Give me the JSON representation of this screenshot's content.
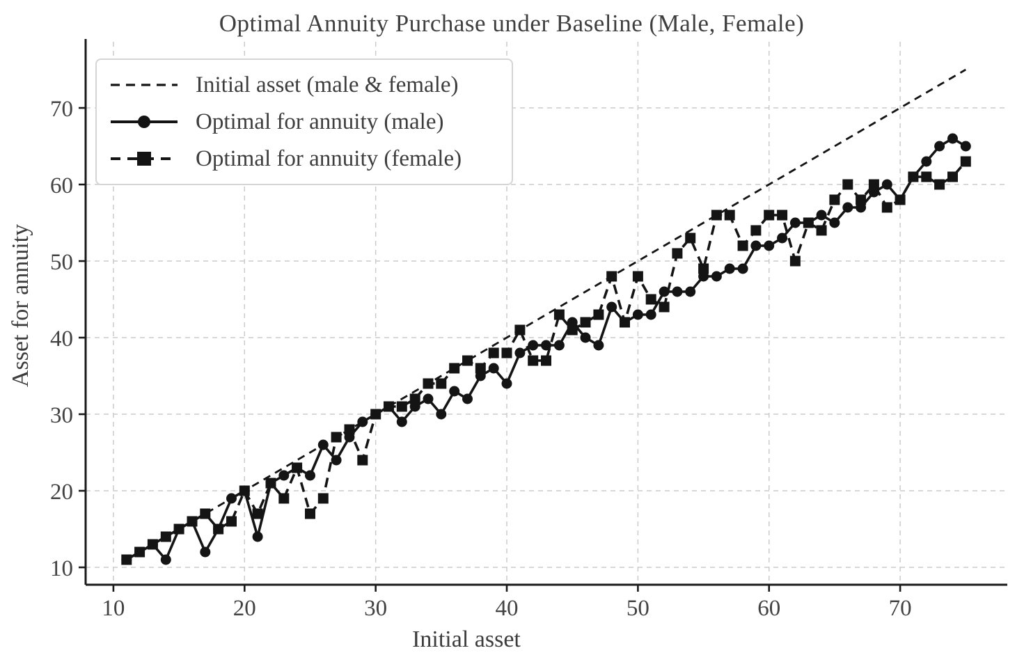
{
  "figure": {
    "title": "Optimal Annuity Purchase under Baseline (Male, Female)",
    "xlabel": "Initial asset",
    "ylabel": "Asset for annuity"
  },
  "legend": {
    "items": [
      {
        "label": "Initial asset (male & female)",
        "line": "dashed",
        "marker": "none"
      },
      {
        "label": "Optimal for annuity (male)",
        "line": "solid",
        "marker": "circle"
      },
      {
        "label": "Optimal for annuity (female)",
        "line": "dashed",
        "marker": "square"
      }
    ]
  },
  "chart_data": {
    "type": "line",
    "title": "Optimal Annuity Purchase under Baseline (Male, Female)",
    "xlabel": "Initial asset",
    "ylabel": "Asset for annuity",
    "grid": true,
    "legend_position": "upper left",
    "xlim": [
      7.88,
      78.17
    ],
    "ylim": [
      7.73,
      78.64
    ],
    "xticks": [
      10,
      20,
      30,
      40,
      50,
      60,
      70
    ],
    "yticks": [
      10,
      20,
      30,
      40,
      50,
      60,
      70
    ],
    "colors": {
      "line": "#141414",
      "grid": "#cbcbcb",
      "text": "#424242",
      "spine": "#1a1a1a"
    },
    "x": [
      11,
      12,
      13,
      14,
      15,
      16,
      17,
      18,
      19,
      20,
      21,
      22,
      23,
      24,
      25,
      26,
      27,
      28,
      29,
      30,
      31,
      32,
      33,
      34,
      35,
      36,
      37,
      38,
      39,
      40,
      41,
      42,
      43,
      44,
      45,
      46,
      47,
      48,
      49,
      50,
      51,
      52,
      53,
      54,
      55,
      56,
      57,
      58,
      59,
      60,
      61,
      62,
      63,
      64,
      65,
      66,
      67,
      68,
      69,
      70,
      71,
      72,
      73,
      74,
      75
    ],
    "series": [
      {
        "name": "Initial asset (male & female)",
        "line": "dashed",
        "marker": "none",
        "values": [
          11,
          12,
          13,
          14,
          15,
          16,
          17,
          18,
          19,
          20,
          21,
          22,
          23,
          24,
          25,
          26,
          27,
          28,
          29,
          30,
          31,
          32,
          33,
          34,
          35,
          36,
          37,
          38,
          39,
          40,
          41,
          42,
          43,
          44,
          45,
          46,
          47,
          48,
          49,
          50,
          51,
          52,
          53,
          54,
          55,
          56,
          57,
          58,
          59,
          60,
          61,
          62,
          63,
          64,
          65,
          66,
          67,
          68,
          69,
          70,
          71,
          72,
          73,
          74,
          75
        ]
      },
      {
        "name": "Optimal for annuity (male)",
        "line": "solid",
        "marker": "circle",
        "values": [
          11,
          12,
          13,
          11,
          15,
          16,
          12,
          15,
          19,
          20,
          14,
          21,
          22,
          23,
          22,
          26,
          24,
          27,
          29,
          30,
          31,
          29,
          31,
          32,
          30,
          33,
          32,
          35,
          36,
          34,
          38,
          39,
          39,
          39,
          42,
          40,
          39,
          44,
          42,
          43,
          43,
          46,
          46,
          46,
          48,
          48,
          49,
          49,
          52,
          52,
          53,
          55,
          55,
          56,
          55,
          57,
          57,
          59,
          60,
          58,
          61,
          63,
          65,
          66,
          65
        ]
      },
      {
        "name": "Optimal for annuity (female)",
        "line": "dashed",
        "marker": "square",
        "values": [
          11,
          12,
          13,
          14,
          15,
          16,
          17,
          15,
          16,
          20,
          17,
          21,
          19,
          23,
          17,
          19,
          27,
          28,
          24,
          30,
          31,
          31,
          32,
          34,
          34,
          36,
          37,
          36,
          38,
          38,
          41,
          37,
          37,
          43,
          41,
          42,
          43,
          48,
          42,
          48,
          45,
          44,
          51,
          53,
          49,
          56,
          56,
          52,
          54,
          56,
          56,
          50,
          55,
          54,
          58,
          60,
          58,
          60,
          57,
          58,
          61,
          61,
          60,
          61,
          63
        ]
      }
    ]
  }
}
